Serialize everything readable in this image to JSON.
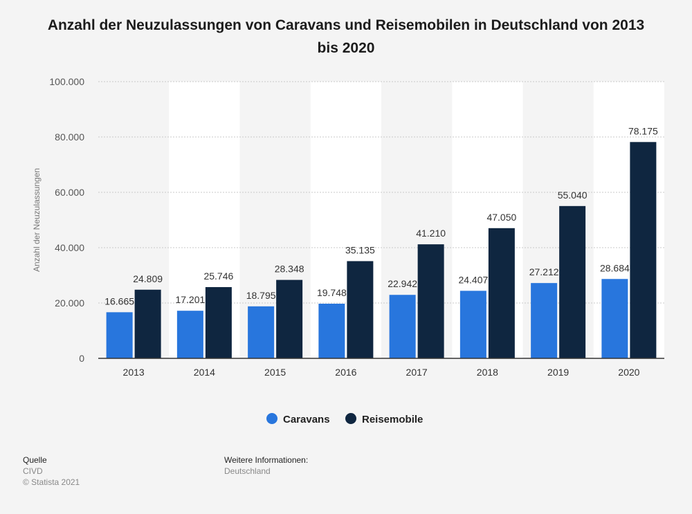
{
  "chart_data": {
    "type": "bar",
    "title": "Anzahl der Neuzulassungen von Caravans und Reisemobilen in Deutschland von 2013 bis 2020",
    "ylabel": "Anzahl der Neuzulassungen",
    "xlabel": "",
    "ylim": [
      0,
      100000
    ],
    "yticks": [
      0,
      20000,
      40000,
      60000,
      80000,
      100000
    ],
    "ytick_labels": [
      "0",
      "20.000",
      "40.000",
      "60.000",
      "80.000",
      "100.000"
    ],
    "grid": true,
    "legend_position": "bottom",
    "categories": [
      "2013",
      "2014",
      "2015",
      "2016",
      "2017",
      "2018",
      "2019",
      "2020"
    ],
    "series": [
      {
        "name": "Caravans",
        "color": "#2876dd",
        "values": [
          16665,
          17201,
          18795,
          19748,
          22942,
          24407,
          27212,
          28684
        ],
        "labels": [
          "16.665",
          "17.201",
          "18.795",
          "19.748",
          "22.942",
          "24.407",
          "27.212",
          "28.684"
        ]
      },
      {
        "name": "Reisemobile",
        "color": "#0f2640",
        "values": [
          24809,
          25746,
          28348,
          35135,
          41210,
          47050,
          55040,
          78175
        ],
        "labels": [
          "24.809",
          "25.746",
          "28.348",
          "35.135",
          "41.210",
          "47.050",
          "55.040",
          "78.175"
        ]
      }
    ]
  },
  "footer": {
    "source_heading": "Quelle",
    "source": "CIVD",
    "copyright": "© Statista 2021",
    "info_heading": "Weitere Informationen:",
    "info": "Deutschland"
  }
}
